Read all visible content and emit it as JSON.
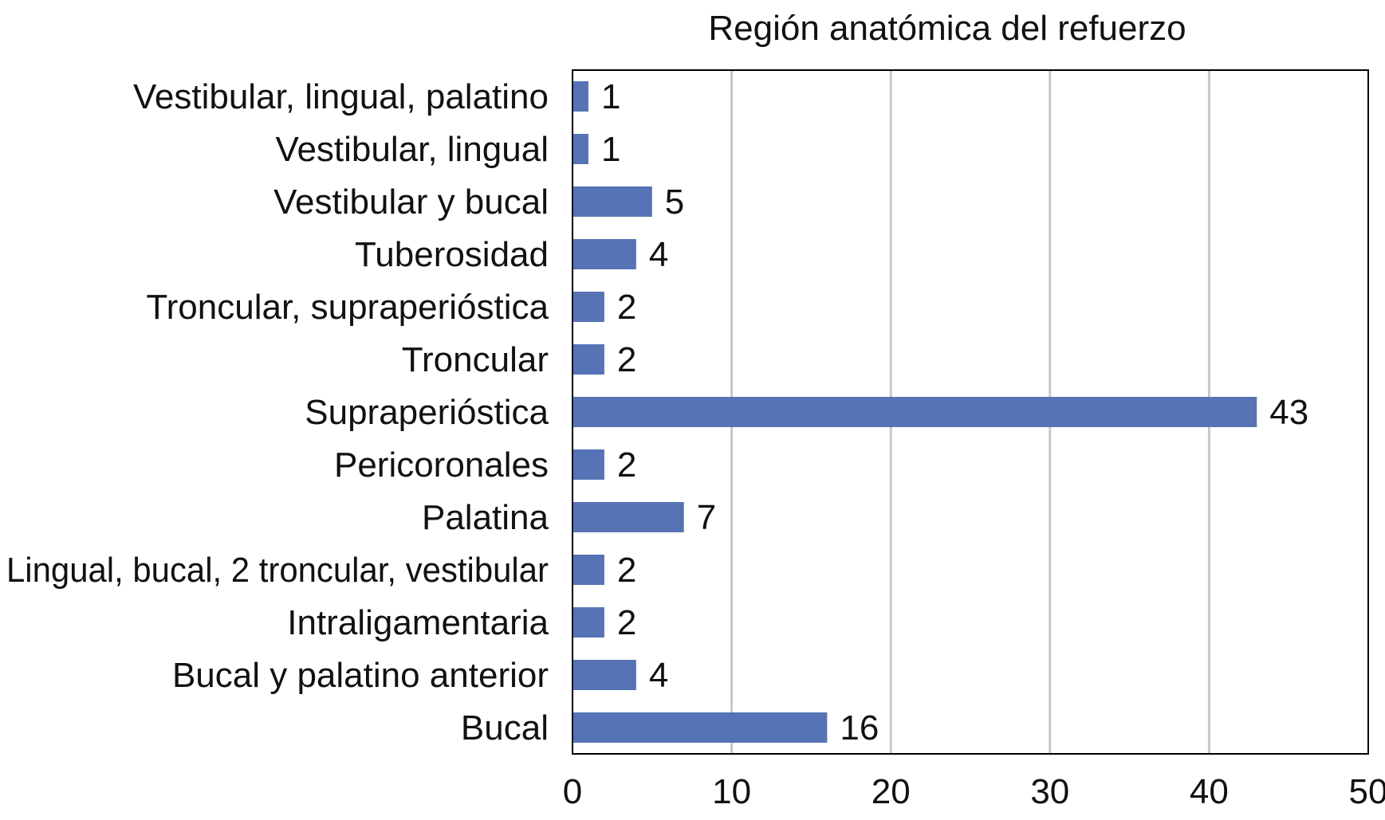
{
  "chart_data": {
    "type": "bar",
    "orientation": "horizontal",
    "title": "Región anatómica del refuerzo",
    "xlabel": "",
    "ylabel": "",
    "categories": [
      "Vestibular, lingual, palatino",
      "Vestibular, lingual",
      "Vestibular y bucal",
      "Tuberosidad",
      "Troncular, supraperióstica",
      "Troncular",
      "Supraperióstica",
      "Pericoronales",
      "Palatina",
      "Lingual, bucal, 2 troncular, vestibular",
      "Intraligamentaria",
      "Bucal y palatino anterior",
      "Bucal"
    ],
    "values": [
      1,
      1,
      5,
      4,
      2,
      2,
      43,
      2,
      7,
      2,
      2,
      4,
      16
    ],
    "xlim": [
      0,
      50
    ],
    "xticks": [
      0,
      10,
      20,
      30,
      40,
      50
    ],
    "grid": true,
    "data_labels": true,
    "legend": "none",
    "colors": {
      "bar": "#5573B5",
      "grid": "#C8C8C8",
      "axis": "#000000",
      "text": "#111111"
    }
  }
}
